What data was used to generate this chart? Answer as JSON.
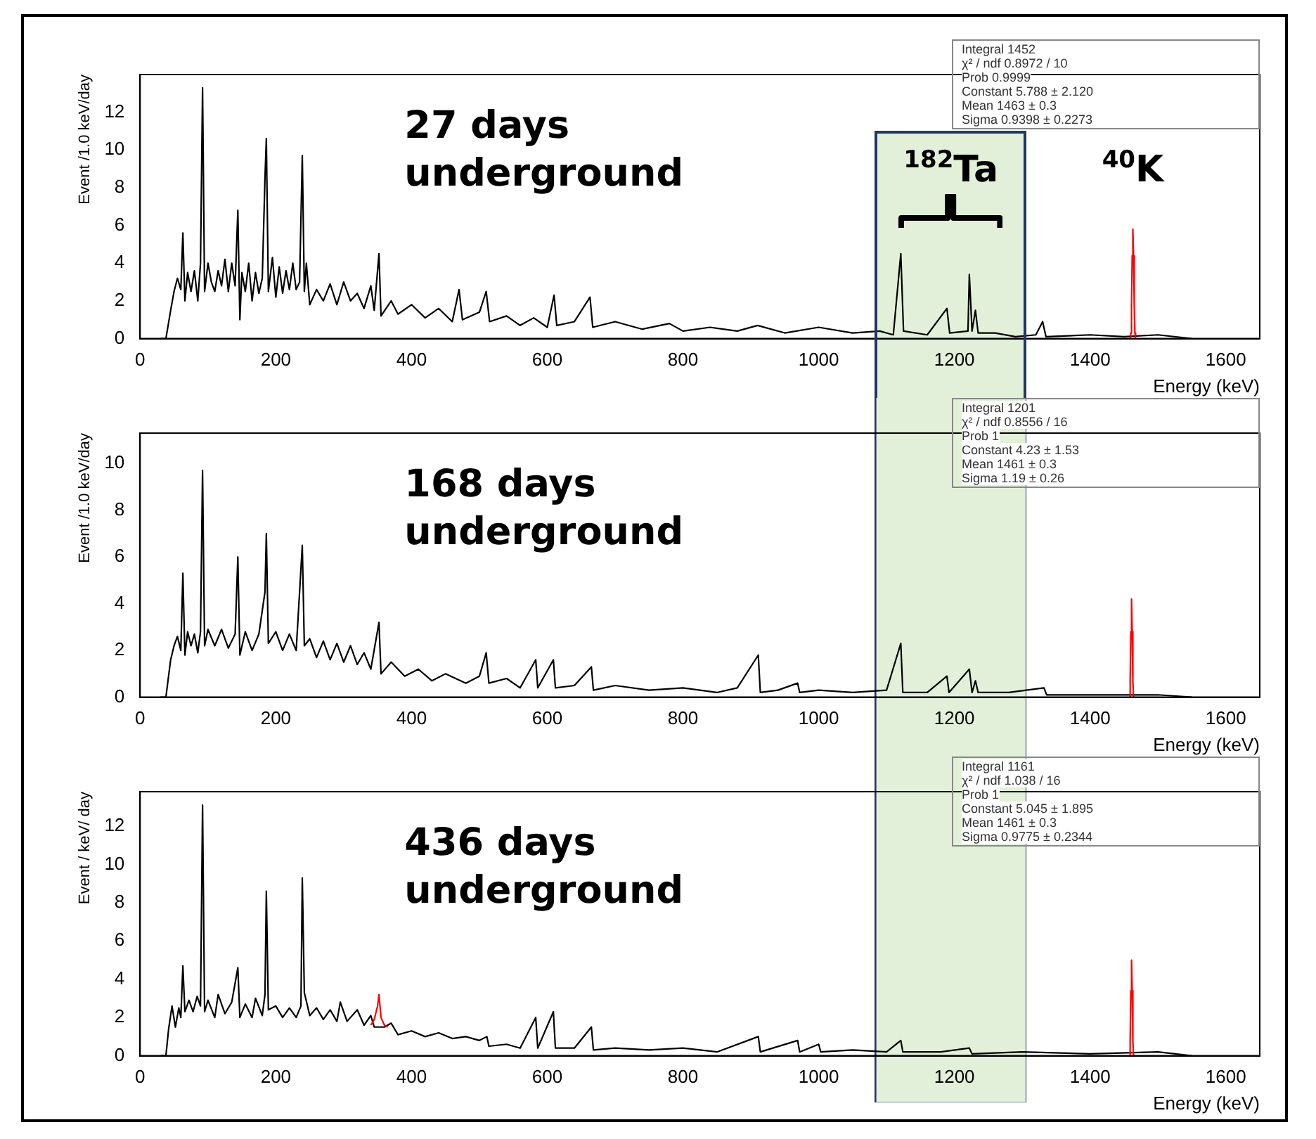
{
  "chart_data": [
    {
      "type": "line",
      "title": "27 days underground",
      "xlabel": "Energy (keV)",
      "ylabel": "Event /1.0 keV/day",
      "xlim": [
        0,
        1650
      ],
      "xticks": [
        0,
        200,
        400,
        600,
        800,
        1000,
        1200,
        1400,
        1600
      ],
      "ylim": [
        0,
        14
      ],
      "yticks": [
        0,
        2,
        4,
        6,
        8,
        10,
        12
      ],
      "legend": false,
      "grid": false,
      "marker": "none",
      "series": [
        {
          "color": "#000000",
          "x": [
            30,
            38,
            45,
            50,
            55,
            60,
            63,
            66,
            70,
            75,
            80,
            85,
            89,
            92,
            95,
            100,
            105,
            110,
            115,
            120,
            125,
            130,
            135,
            140,
            144,
            147,
            150,
            155,
            160,
            165,
            170,
            175,
            180,
            184,
            186,
            189,
            195,
            200,
            205,
            210,
            215,
            220,
            225,
            230,
            235,
            239,
            242,
            245,
            250,
            260,
            270,
            280,
            290,
            300,
            310,
            320,
            330,
            340,
            345,
            352,
            355,
            370,
            380,
            400,
            420,
            440,
            460,
            470,
            475,
            500,
            510,
            515,
            540,
            560,
            580,
            600,
            610,
            614,
            640,
            663,
            667,
            700,
            740,
            780,
            800,
            840,
            880,
            910,
            950,
            1000,
            1050,
            1090,
            1110,
            1121,
            1125,
            1160,
            1189,
            1193,
            1220,
            1222,
            1226,
            1231,
            1235,
            1260,
            1290,
            1320,
            1330,
            1335,
            1400,
            1450,
            1500,
            1550
          ],
          "values": [
            0,
            0,
            1.5,
            2.5,
            3.2,
            2.6,
            5.6,
            2.0,
            3.5,
            2.5,
            3.6,
            2.0,
            4.0,
            13.3,
            2.5,
            4.0,
            3.0,
            2.5,
            3.6,
            2.8,
            4.2,
            2.5,
            4.0,
            2.8,
            6.8,
            1.0,
            3.5,
            2.5,
            4.0,
            2.0,
            3.5,
            2.4,
            3.2,
            8.5,
            10.6,
            2.5,
            4.3,
            2.2,
            3.8,
            2.4,
            3.6,
            2.6,
            4.0,
            2.6,
            3.0,
            9.7,
            2.5,
            4.0,
            1.8,
            2.6,
            2.0,
            2.9,
            1.8,
            3.0,
            2.0,
            2.4,
            1.6,
            2.8,
            1.5,
            4.5,
            1.2,
            2.0,
            1.3,
            1.8,
            1.1,
            1.6,
            0.9,
            2.6,
            1.0,
            1.4,
            2.5,
            0.9,
            1.2,
            0.7,
            1.1,
            0.6,
            2.3,
            0.7,
            0.9,
            2.2,
            0.6,
            0.9,
            0.5,
            0.8,
            0.4,
            0.6,
            0.4,
            0.7,
            0.3,
            0.6,
            0.3,
            0.4,
            0.2,
            4.5,
            0.4,
            0.2,
            1.6,
            0.3,
            0.4,
            3.4,
            0.4,
            1.5,
            0.3,
            0.3,
            0.1,
            0.2,
            0.9,
            0.1,
            0.2,
            0.1,
            0.2,
            0
          ]
        },
        {
          "name": "$^{40}$K",
          "color": "#ff0000",
          "x": [
            1459,
            1460,
            1461,
            1462,
            1463,
            1464,
            1465,
            1466,
            1467
          ],
          "values": [
            0,
            0.3,
            1.8,
            4.4,
            5.8,
            4.4,
            1.8,
            0.3,
            0
          ]
        }
      ],
      "bands": [
        {
          "axis": "x",
          "from": 1085,
          "to": 1305,
          "color": "#e2f0d9",
          "label": "$^{182}$Ta"
        }
      ],
      "annotations": [
        "Integral 1452",
        "χ² / ndf 0.8972 / 10",
        "Prob 0.9999",
        "Constant 5.788 ± 2.120",
        "Mean 1463 ± 0.3",
        "Sigma 0.9398 ± 0.2273"
      ]
    },
    {
      "type": "line",
      "title": "168 days underground",
      "xlabel": "Energy (keV)",
      "ylabel": "Event /1.0 keV/day",
      "xlim": [
        0,
        1650
      ],
      "xticks": [
        0,
        200,
        400,
        600,
        800,
        1000,
        1200,
        1400,
        1600
      ],
      "ylim": [
        0,
        11.3
      ],
      "yticks": [
        0,
        2,
        4,
        6,
        8,
        10
      ],
      "legend": false,
      "grid": false,
      "marker": "none",
      "series": [
        {
          "color": "#000000",
          "x": [
            30,
            38,
            45,
            50,
            55,
            60,
            63,
            66,
            70,
            75,
            80,
            85,
            89,
            92,
            95,
            100,
            110,
            120,
            130,
            140,
            144,
            147,
            155,
            165,
            175,
            184,
            186,
            189,
            200,
            210,
            220,
            230,
            239,
            242,
            250,
            260,
            270,
            280,
            290,
            300,
            310,
            320,
            330,
            340,
            352,
            355,
            370,
            390,
            410,
            430,
            450,
            480,
            500,
            510,
            514,
            540,
            560,
            583,
            586,
            609,
            612,
            640,
            665,
            668,
            700,
            750,
            800,
            850,
            880,
            911,
            914,
            940,
            969,
            972,
            1000,
            1050,
            1100,
            1121,
            1124,
            1160,
            1189,
            1192,
            1222,
            1226,
            1231,
            1235,
            1280,
            1332,
            1336,
            1400,
            1500,
            1550
          ],
          "values": [
            0,
            0,
            1.6,
            2.2,
            2.6,
            2.0,
            5.3,
            1.8,
            2.8,
            2.2,
            2.7,
            1.9,
            2.8,
            9.7,
            2.2,
            2.9,
            2.2,
            2.9,
            2.1,
            2.7,
            6.0,
            1.8,
            2.8,
            2.0,
            2.7,
            4.5,
            7.0,
            2.3,
            2.8,
            2.0,
            2.7,
            2.0,
            6.5,
            2.2,
            2.5,
            1.7,
            2.4,
            1.6,
            2.3,
            1.5,
            2.2,
            1.4,
            1.9,
            1.2,
            3.2,
            1.0,
            1.5,
            0.9,
            1.2,
            0.7,
            1.0,
            0.6,
            0.9,
            1.9,
            0.6,
            0.8,
            0.4,
            1.6,
            0.4,
            1.6,
            0.4,
            0.5,
            1.3,
            0.3,
            0.5,
            0.3,
            0.4,
            0.2,
            0.4,
            1.8,
            0.2,
            0.3,
            0.6,
            0.2,
            0.3,
            0.2,
            0.3,
            2.3,
            0.2,
            0.2,
            0.9,
            0.2,
            1.2,
            0.2,
            0.7,
            0.2,
            0.2,
            0.4,
            0.1,
            0.1,
            0.1,
            0
          ]
        },
        {
          "color": "#ff0000",
          "x": [
            1458,
            1459,
            1460,
            1461,
            1462,
            1463,
            1464
          ],
          "values": [
            0,
            0.7,
            2.8,
            4.2,
            2.8,
            0.7,
            0
          ]
        }
      ],
      "bands": [
        {
          "axis": "x",
          "from": 1085,
          "to": 1305,
          "color": "#e2f0d9"
        }
      ],
      "annotations": [
        "Integral 1201",
        "χ² / ndf 0.8556 / 16",
        "Prob 1",
        "Constant 4.23 ± 1.53",
        "Mean 1461 ± 0.3",
        "Sigma 1.19 ± 0.26"
      ]
    },
    {
      "type": "line",
      "title": "436 days underground",
      "xlabel": "Energy (keV)",
      "ylabel": "Event / keV/ day",
      "xlim": [
        0,
        1650
      ],
      "xticks": [
        0,
        200,
        400,
        600,
        800,
        1000,
        1200,
        1400,
        1600
      ],
      "ylim": [
        0,
        13.8
      ],
      "yticks": [
        0,
        2,
        4,
        6,
        8,
        10,
        12
      ],
      "legend": false,
      "grid": false,
      "marker": "none",
      "series": [
        {
          "color": "#000000",
          "x": [
            30,
            38,
            42,
            47,
            52,
            57,
            60,
            63,
            66,
            72,
            78,
            84,
            89,
            92,
            95,
            100,
            110,
            115,
            125,
            135,
            144,
            147,
            155,
            165,
            170,
            180,
            184,
            186,
            189,
            200,
            210,
            220,
            230,
            237,
            239,
            242,
            250,
            260,
            270,
            280,
            290,
            295,
            305,
            320,
            330,
            340,
            345,
            360,
            370,
            380,
            400,
            420,
            440,
            460,
            480,
            500,
            511,
            514,
            540,
            560,
            583,
            586,
            609,
            612,
            640,
            665,
            668,
            700,
            750,
            800,
            850,
            911,
            914,
            969,
            972,
            1000,
            1003,
            1050,
            1100,
            1121,
            1124,
            1180,
            1222,
            1226,
            1300,
            1400,
            1500,
            1550
          ],
          "values": [
            0,
            0,
            1.4,
            2.6,
            1.5,
            2.5,
            2.0,
            4.7,
            2.3,
            2.9,
            2.3,
            3.1,
            2.6,
            13.1,
            2.3,
            2.9,
            2.0,
            3.2,
            2.2,
            2.8,
            4.6,
            2.0,
            2.7,
            2.0,
            3.0,
            2.1,
            3.2,
            8.6,
            2.4,
            2.6,
            2.0,
            2.5,
            2.0,
            2.6,
            9.3,
            3.3,
            2.1,
            2.5,
            1.9,
            2.4,
            1.8,
            2.8,
            1.8,
            2.4,
            1.6,
            2.1,
            1.5,
            1.5,
            1.7,
            1.1,
            1.3,
            1.0,
            1.2,
            0.9,
            1.0,
            0.8,
            1.0,
            0.5,
            0.6,
            0.4,
            2.0,
            0.4,
            2.3,
            0.4,
            0.4,
            1.5,
            0.3,
            0.4,
            0.3,
            0.4,
            0.2,
            1.0,
            0.2,
            0.8,
            0.2,
            0.6,
            0.2,
            0.3,
            0.2,
            0.8,
            0.2,
            0.2,
            0.4,
            0.1,
            0.2,
            0.1,
            0.2,
            0
          ]
        },
        {
          "color": "#ff0000",
          "x": [
            340,
            345,
            350,
            352,
            355,
            360,
            365
          ],
          "values": [
            1.6,
            1.9,
            2.6,
            3.2,
            2.0,
            1.6,
            1.5
          ]
        },
        {
          "color": "#ff0000",
          "x": [
            1458,
            1459,
            1460,
            1461,
            1462,
            1463,
            1464
          ],
          "values": [
            0,
            0.8,
            3.4,
            5.0,
            3.4,
            0.8,
            0
          ]
        }
      ],
      "bands": [
        {
          "axis": "x",
          "from": 1085,
          "to": 1305,
          "color": "#e2f0d9"
        }
      ],
      "annotations": [
        "Integral 1161",
        "χ² / ndf 1.038 / 16",
        "Prob 1",
        "Constant 5.045 ± 1.895",
        "Mean 1461 ± 0.3",
        "Sigma 0.9775 ± 0.2344"
      ]
    }
  ]
}
